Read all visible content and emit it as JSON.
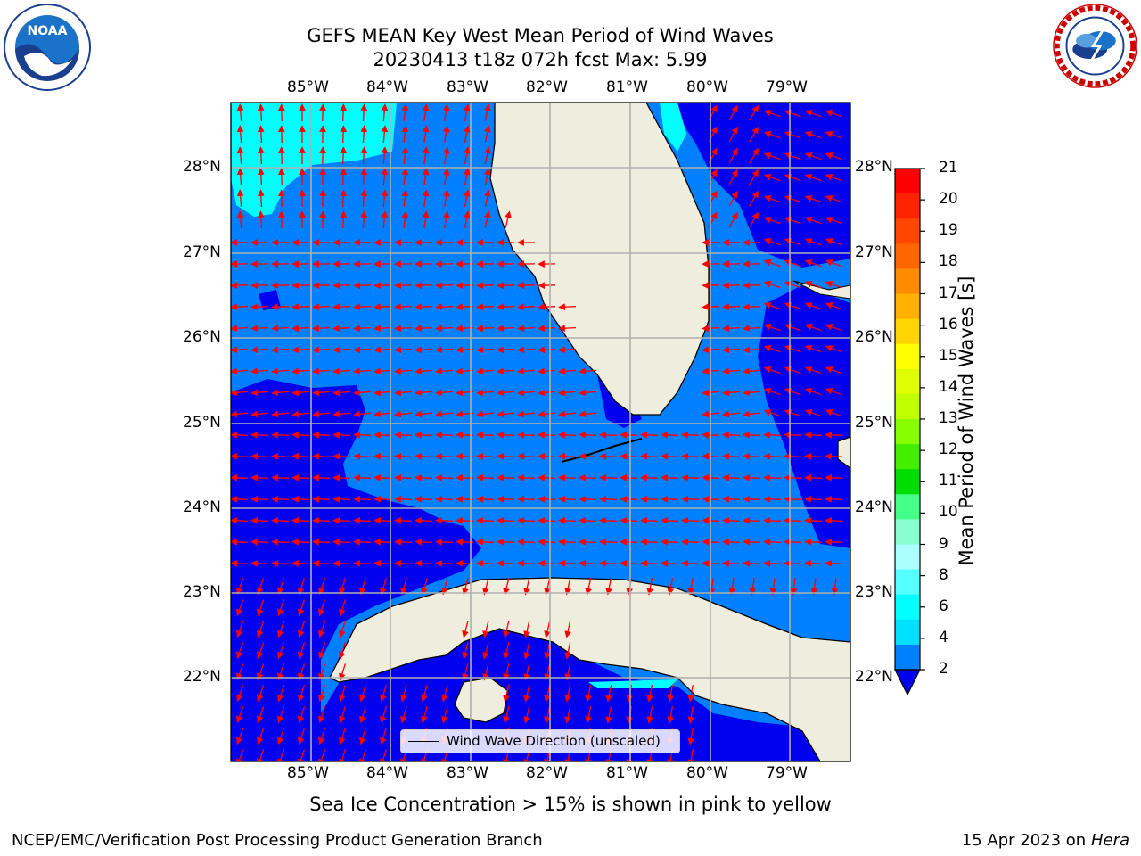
{
  "header": {
    "title_line1": "GEFS MEAN Key West Mean Period of Wind Waves",
    "title_line2": "20230413 t18z 072h fcst   Max: 5.99"
  },
  "logos": {
    "left": "NOAA",
    "left_ring": "NATIONAL OCEANIC AND ATMOSPHERIC ADMINISTRATION · U.S. DEPARTMENT OF COMMERCE",
    "right_ring": "NATIONAL WEATHER SERVICE"
  },
  "map": {
    "lon_labels": [
      "85°W",
      "84°W",
      "83°W",
      "82°W",
      "81°W",
      "80°W",
      "79°W"
    ],
    "lat_labels": [
      "28°N",
      "27°N",
      "26°N",
      "25°N",
      "24°N",
      "23°N",
      "22°N"
    ],
    "legend_label": "Wind Wave Direction (unscaled)",
    "colors": {
      "ocean_main": "#0080ff",
      "ocean_low": "#0000ee",
      "ocean_mid": "#00ffff",
      "land": "#efedde",
      "arrow": "#ff0000"
    }
  },
  "colorbar": {
    "label": "Mean Period of Wind Waves [s]",
    "ticks": [
      "21",
      "20",
      "19",
      "18",
      "17",
      "16",
      "15",
      "14",
      "13",
      "12",
      "11",
      "10",
      "9",
      "8",
      "6",
      "4",
      "2"
    ],
    "colors": [
      "#ff0000",
      "#ff2200",
      "#ff4500",
      "#ff6600",
      "#ff8c00",
      "#ffb000",
      "#ffd400",
      "#ffff00",
      "#dfff00",
      "#bfff00",
      "#88ff00",
      "#44ee00",
      "#00dd00",
      "#44ff88",
      "#88ffcc",
      "#aaffff",
      "#55ffff",
      "#00ffff",
      "#00e0ff",
      "#0080ff"
    ]
  },
  "footer": {
    "note": "Sea Ice Concentration > 15% is shown in pink to yellow",
    "credit_left": "NCEP/EMC/Verification Post Processing Product Generation Branch",
    "credit_date": "15 Apr 2023 on ",
    "credit_machine": "Hera"
  }
}
